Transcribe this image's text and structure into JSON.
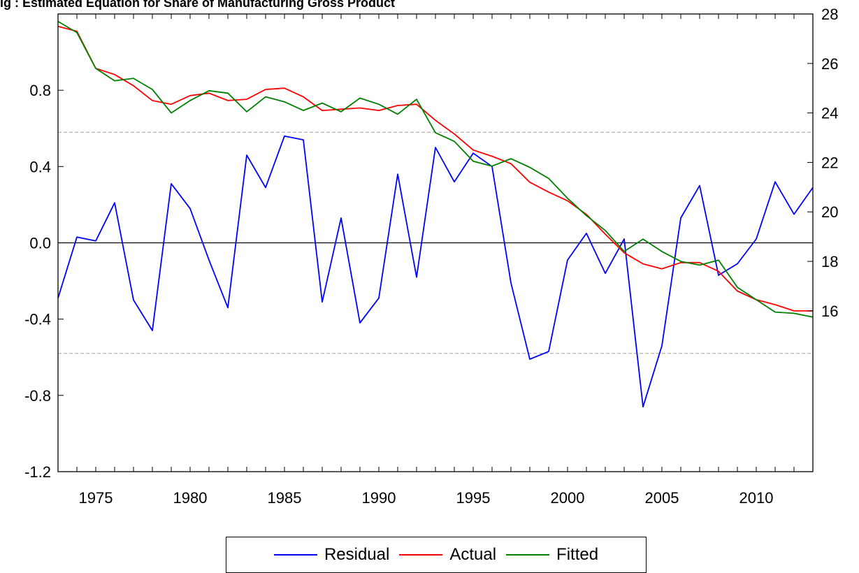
{
  "title": "ig : Estimated Equation for Share of Manufacturing Gross Product",
  "chart_data": {
    "type": "line",
    "x": [
      1973,
      1974,
      1975,
      1976,
      1977,
      1978,
      1979,
      1980,
      1981,
      1982,
      1983,
      1984,
      1985,
      1986,
      1987,
      1988,
      1989,
      1990,
      1991,
      1992,
      1993,
      1994,
      1995,
      1996,
      1997,
      1998,
      1999,
      2000,
      2001,
      2002,
      2003,
      2004,
      2005,
      2006,
      2007,
      2008,
      2009,
      2010,
      2011,
      2012,
      2013
    ],
    "xlim": [
      1973,
      2013
    ],
    "x_ticks": [
      1975,
      1980,
      1985,
      1990,
      1995,
      2000,
      2005,
      2010
    ],
    "left_axis": {
      "ylim": [
        -1.2,
        1.2
      ],
      "ticks": [
        -1.2,
        -0.8,
        -0.4,
        0.0,
        0.4,
        0.8
      ],
      "tick_labels": [
        "-1.2",
        "-0.8",
        "-0.4",
        "0.0",
        "0.4",
        "0.8"
      ]
    },
    "right_axis": {
      "ylim": [
        9.5,
        28
      ],
      "ticks": [
        16,
        18,
        20,
        22,
        24,
        26,
        28
      ],
      "tick_labels": [
        "16",
        "18",
        "20",
        "22",
        "24",
        "26",
        "28"
      ]
    },
    "bands": [
      0.58,
      -0.58
    ],
    "series": [
      {
        "name": "Residual",
        "axis": "left",
        "color": "#0000ff",
        "values": [
          -0.29,
          0.03,
          0.01,
          0.21,
          -0.3,
          -0.46,
          0.31,
          0.18,
          -0.09,
          -0.34,
          0.46,
          0.29,
          0.56,
          0.54,
          -0.31,
          0.13,
          -0.42,
          -0.29,
          0.36,
          -0.18,
          0.5,
          0.32,
          0.47,
          0.4,
          -0.21,
          -0.61,
          -0.57,
          -0.09,
          0.05,
          -0.16,
          0.02,
          -0.86,
          -0.54,
          0.13,
          0.3,
          -0.17,
          -0.11,
          0.02,
          0.32,
          0.15,
          0.29
        ]
      },
      {
        "name": "Actual",
        "axis": "right",
        "color": "#ff0000",
        "values": [
          27.5,
          27.3,
          25.8,
          25.55,
          25.1,
          24.5,
          24.35,
          24.7,
          24.8,
          24.5,
          24.55,
          24.95,
          25.0,
          24.65,
          24.1,
          24.15,
          24.2,
          24.1,
          24.3,
          24.35,
          23.7,
          23.15,
          22.5,
          22.25,
          21.95,
          21.2,
          20.8,
          20.45,
          19.9,
          19.1,
          18.35,
          17.9,
          17.7,
          17.95,
          17.95,
          17.6,
          16.8,
          16.45,
          16.25,
          16.0,
          16.0
        ]
      },
      {
        "name": "Fitted",
        "axis": "right",
        "color": "#008000",
        "values": [
          27.7,
          27.25,
          25.8,
          25.3,
          25.4,
          24.95,
          24.0,
          24.5,
          24.9,
          24.8,
          24.05,
          24.65,
          24.45,
          24.1,
          24.4,
          24.05,
          24.6,
          24.35,
          23.95,
          24.55,
          23.2,
          22.85,
          22.05,
          21.85,
          22.15,
          21.8,
          21.35,
          20.55,
          19.85,
          19.25,
          18.4,
          18.9,
          18.4,
          18.0,
          17.85,
          18.05,
          16.95,
          16.45,
          15.95,
          15.9,
          15.75
        ]
      }
    ],
    "legend": [
      "Residual",
      "Actual",
      "Fitted"
    ],
    "legend_position": "bottom-center"
  }
}
